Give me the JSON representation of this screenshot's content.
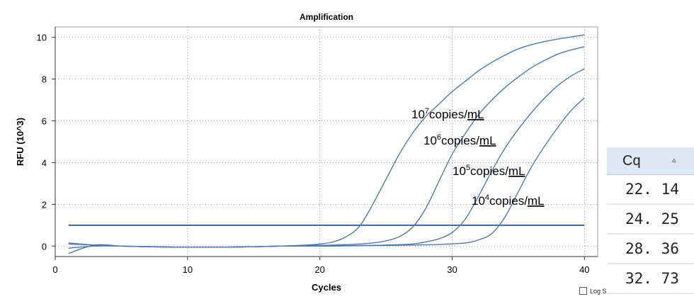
{
  "chart_data": {
    "type": "line",
    "title": "Amplification",
    "xlabel": "Cycles",
    "ylabel": "RFU (10^3)",
    "xlim": [
      0,
      41
    ],
    "ylim": [
      -0.5,
      10.5
    ],
    "xticks": [
      0,
      10,
      20,
      30,
      40
    ],
    "yticks": [
      0,
      2,
      4,
      6,
      8,
      10
    ],
    "grid": true,
    "threshold": 1.0,
    "series": [
      {
        "name": "10^7copies/mL",
        "x": [
          1,
          3,
          5,
          7,
          9,
          11,
          13,
          15,
          17,
          19,
          20,
          21,
          22,
          23,
          24,
          25,
          26,
          27,
          28,
          29,
          30,
          31,
          32,
          33,
          34,
          35,
          36,
          37,
          38,
          39,
          40
        ],
        "values": [
          -0.35,
          0.05,
          0.0,
          -0.02,
          -0.05,
          -0.05,
          -0.05,
          -0.03,
          0.0,
          0.05,
          0.1,
          0.2,
          0.45,
          0.95,
          2.0,
          3.2,
          4.4,
          5.4,
          6.2,
          6.8,
          7.4,
          7.9,
          8.4,
          8.8,
          9.15,
          9.45,
          9.65,
          9.8,
          9.92,
          10.02,
          10.12
        ]
      },
      {
        "name": "10^6copies/mL",
        "x": [
          1,
          3,
          5,
          7,
          9,
          11,
          13,
          15,
          17,
          19,
          21,
          23,
          24,
          25,
          26,
          27,
          28,
          29,
          30,
          31,
          32,
          33,
          34,
          35,
          36,
          37,
          38,
          39,
          40
        ],
        "values": [
          -0.1,
          0.0,
          0.0,
          -0.03,
          -0.05,
          -0.05,
          -0.05,
          -0.03,
          0.0,
          0.03,
          0.05,
          0.1,
          0.15,
          0.25,
          0.45,
          0.9,
          1.8,
          3.1,
          4.4,
          5.4,
          6.3,
          7.0,
          7.6,
          8.1,
          8.55,
          8.9,
          9.2,
          9.4,
          9.55
        ]
      },
      {
        "name": "10^5copies/mL",
        "x": [
          1,
          3,
          5,
          7,
          9,
          11,
          13,
          15,
          17,
          19,
          21,
          23,
          25,
          27,
          28,
          29,
          30,
          31,
          32,
          33,
          34,
          35,
          36,
          37,
          38,
          39,
          40
        ],
        "values": [
          0.1,
          0.05,
          0.0,
          -0.03,
          -0.05,
          -0.05,
          -0.05,
          -0.03,
          0.0,
          0.0,
          0.02,
          0.03,
          0.05,
          0.1,
          0.2,
          0.35,
          0.65,
          1.3,
          2.4,
          3.6,
          4.7,
          5.6,
          6.4,
          7.1,
          7.7,
          8.15,
          8.5
        ]
      },
      {
        "name": "10^4copies/mL",
        "x": [
          1,
          3,
          5,
          7,
          9,
          11,
          13,
          15,
          17,
          19,
          21,
          23,
          25,
          27,
          29,
          31,
          32,
          33,
          34,
          35,
          36,
          37,
          38,
          39,
          40
        ],
        "values": [
          0.15,
          0.05,
          0.0,
          -0.03,
          -0.05,
          -0.05,
          -0.05,
          -0.03,
          0.0,
          0.0,
          0.0,
          0.02,
          0.03,
          0.05,
          0.08,
          0.15,
          0.3,
          0.6,
          1.4,
          2.6,
          3.8,
          4.8,
          5.7,
          6.5,
          7.1
        ]
      }
    ],
    "annotations": [
      {
        "base": "10",
        "exp": "7",
        "unit": "copies/mL"
      },
      {
        "base": "10",
        "exp": "6",
        "unit": "copies/mL"
      },
      {
        "base": "10",
        "exp": "5",
        "unit": "copies/mL"
      },
      {
        "base": "10",
        "exp": "4",
        "unit": "copies/mL"
      }
    ],
    "colors": {
      "curve": "#4f79a8",
      "threshold": "#1f4e79",
      "grid": "#9a9a9a"
    }
  },
  "cq_table": {
    "header": "Cq",
    "sort_icon": "sort-ascending-icon",
    "values": [
      "22. 14",
      "24. 25",
      "28. 36",
      "32. 73"
    ]
  },
  "log_scale": {
    "label": "Log S",
    "checked": false
  }
}
